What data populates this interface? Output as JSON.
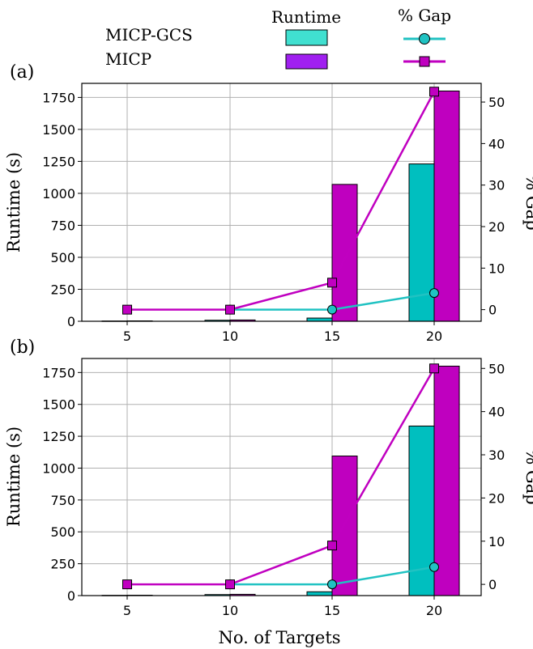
{
  "legend": {
    "col_runtime": "Runtime",
    "col_gap": "% Gap",
    "entries": [
      {
        "name": "MICP-GCS",
        "bar_color": "#40E0D0",
        "line_color": "#20C2C2"
      },
      {
        "name": "MICP",
        "bar_color": "#A020F0",
        "line_color": "#C000C0"
      }
    ]
  },
  "xlabel": "No. of Targets",
  "chart_data": [
    {
      "type": "bar",
      "panel_label": "(a)",
      "categories": [
        "5",
        "10",
        "15",
        "20"
      ],
      "series": [
        {
          "name": "MICP-GCS",
          "kind": "bar",
          "axis": "left",
          "color": "#00BFBF",
          "values": [
            2,
            8,
            25,
            1230
          ]
        },
        {
          "name": "MICP",
          "kind": "bar",
          "axis": "left",
          "color": "#BF00BF",
          "values": [
            3,
            10,
            1070,
            1800
          ]
        },
        {
          "name": "MICP-GCS",
          "kind": "line",
          "axis": "right",
          "color": "#20C2C2",
          "values": [
            null,
            0,
            0,
            4
          ]
        },
        {
          "name": "MICP",
          "kind": "line",
          "axis": "right",
          "color": "#C000C0",
          "values": [
            0,
            0,
            6.5,
            52.5
          ]
        }
      ],
      "ylabel": "Runtime (s)",
      "ylabel_right": "% Gap",
      "ylim": [
        0,
        1860
      ],
      "ylim_right": [
        -2.8,
        54.5
      ],
      "yticks": [
        0,
        250,
        500,
        750,
        1000,
        1250,
        1500,
        1750
      ],
      "yticks_right": [
        0,
        10,
        20,
        30,
        40,
        50
      ],
      "grid": true
    },
    {
      "type": "bar",
      "panel_label": "(b)",
      "categories": [
        "5",
        "10",
        "15",
        "20"
      ],
      "series": [
        {
          "name": "MICP-GCS",
          "kind": "bar",
          "axis": "left",
          "color": "#00BFBF",
          "values": [
            2,
            8,
            30,
            1330
          ]
        },
        {
          "name": "MICP",
          "kind": "bar",
          "axis": "left",
          "color": "#BF00BF",
          "values": [
            3,
            10,
            1095,
            1800
          ]
        },
        {
          "name": "MICP-GCS",
          "kind": "line",
          "axis": "right",
          "color": "#20C2C2",
          "values": [
            null,
            0,
            0,
            4
          ]
        },
        {
          "name": "MICP",
          "kind": "line",
          "axis": "right",
          "color": "#C000C0",
          "values": [
            0,
            0,
            9,
            50
          ]
        }
      ],
      "ylabel": "Runtime (s)",
      "ylabel_right": "% Gap",
      "ylim": [
        0,
        1860
      ],
      "ylim_right": [
        -2.6,
        52.3
      ],
      "yticks": [
        0,
        250,
        500,
        750,
        1000,
        1250,
        1500,
        1750
      ],
      "yticks_right": [
        0,
        10,
        20,
        30,
        40,
        50
      ],
      "grid": true
    }
  ]
}
